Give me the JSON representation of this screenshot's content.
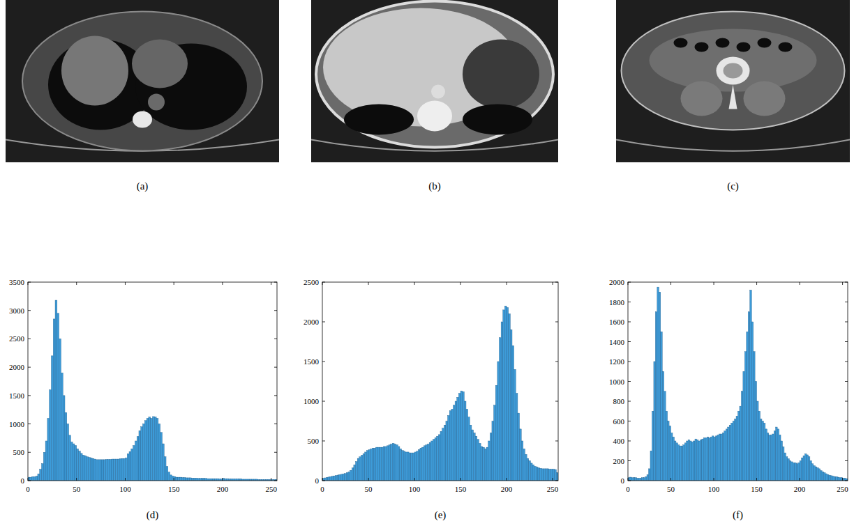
{
  "images": [
    {
      "label": "(a)"
    },
    {
      "label": "(b)"
    },
    {
      "label": "(c)"
    }
  ],
  "chart_data": [
    {
      "type": "histogram",
      "title": "(d)",
      "color": "#3d9bd8",
      "grid": false,
      "xlim": [
        0,
        256
      ],
      "xticks": [
        0,
        50,
        100,
        150,
        200,
        250
      ],
      "ylim": [
        0,
        3500
      ],
      "yticks": [
        0,
        500,
        1000,
        1500,
        2000,
        2500,
        3000,
        3500
      ],
      "bins": [
        0,
        2,
        4,
        6,
        8,
        10,
        12,
        14,
        16,
        18,
        20,
        22,
        24,
        26,
        28,
        30,
        32,
        34,
        36,
        38,
        40,
        42,
        44,
        46,
        48,
        50,
        52,
        54,
        56,
        58,
        60,
        62,
        64,
        66,
        68,
        70,
        72,
        74,
        76,
        78,
        80,
        82,
        84,
        86,
        88,
        90,
        92,
        94,
        96,
        98,
        100,
        102,
        104,
        106,
        108,
        110,
        112,
        114,
        116,
        118,
        120,
        122,
        124,
        126,
        128,
        130,
        132,
        134,
        136,
        138,
        140,
        142,
        144,
        146,
        148,
        150,
        152,
        154,
        156,
        158,
        160,
        162,
        164,
        166,
        168,
        170,
        172,
        174,
        176,
        178,
        180,
        182,
        184,
        186,
        188,
        190,
        192,
        194,
        196,
        198,
        200,
        202,
        204,
        206,
        208,
        210,
        212,
        214,
        216,
        218,
        220,
        222,
        224,
        226,
        228,
        230,
        232,
        234,
        236,
        238,
        240,
        242,
        244,
        246,
        248,
        250,
        252,
        254,
        256
      ],
      "values": [
        60,
        60,
        70,
        70,
        80,
        120,
        200,
        300,
        500,
        700,
        1100,
        1600,
        2200,
        2850,
        3180,
        2950,
        2500,
        1900,
        1500,
        1200,
        1000,
        800,
        680,
        650,
        620,
        560,
        520,
        480,
        450,
        440,
        420,
        410,
        400,
        390,
        380,
        370,
        370,
        370,
        370,
        370,
        375,
        375,
        375,
        380,
        380,
        380,
        380,
        385,
        390,
        390,
        400,
        470,
        510,
        560,
        620,
        700,
        780,
        880,
        950,
        1000,
        1060,
        1100,
        1120,
        1100,
        1130,
        1120,
        1100,
        1000,
        850,
        650,
        420,
        250,
        150,
        100,
        80,
        70,
        60,
        60,
        60,
        55,
        55,
        50,
        50,
        50,
        45,
        45,
        45,
        40,
        40,
        40,
        40,
        40,
        35,
        35,
        35,
        35,
        35,
        35,
        30,
        30,
        40,
        35,
        35,
        30,
        30,
        30,
        30,
        30,
        30,
        30,
        25,
        25,
        25,
        25,
        25,
        25,
        25,
        25,
        20,
        20,
        20,
        20,
        20,
        20,
        20,
        20,
        20,
        20
      ]
    },
    {
      "type": "histogram",
      "title": "(e)",
      "color": "#3d9bd8",
      "grid": false,
      "xlim": [
        0,
        256
      ],
      "xticks": [
        0,
        50,
        100,
        150,
        200,
        250
      ],
      "ylim": [
        0,
        2500
      ],
      "yticks": [
        0,
        500,
        1000,
        1500,
        2000,
        2500
      ],
      "bins": [
        0,
        2,
        4,
        6,
        8,
        10,
        12,
        14,
        16,
        18,
        20,
        22,
        24,
        26,
        28,
        30,
        32,
        34,
        36,
        38,
        40,
        42,
        44,
        46,
        48,
        50,
        52,
        54,
        56,
        58,
        60,
        62,
        64,
        66,
        68,
        70,
        72,
        74,
        76,
        78,
        80,
        82,
        84,
        86,
        88,
        90,
        92,
        94,
        96,
        98,
        100,
        102,
        104,
        106,
        108,
        110,
        112,
        114,
        116,
        118,
        120,
        122,
        124,
        126,
        128,
        130,
        132,
        134,
        136,
        138,
        140,
        142,
        144,
        146,
        148,
        150,
        152,
        154,
        156,
        158,
        160,
        162,
        164,
        166,
        168,
        170,
        172,
        174,
        176,
        178,
        180,
        182,
        184,
        186,
        188,
        190,
        192,
        194,
        196,
        198,
        200,
        202,
        204,
        206,
        208,
        210,
        212,
        214,
        216,
        218,
        220,
        222,
        224,
        226,
        228,
        230,
        232,
        234,
        236,
        238,
        240,
        242,
        244,
        246,
        248,
        250,
        252,
        254,
        256
      ],
      "values": [
        30,
        35,
        40,
        45,
        50,
        55,
        60,
        65,
        70,
        75,
        80,
        85,
        90,
        100,
        110,
        130,
        160,
        200,
        240,
        280,
        300,
        320,
        340,
        360,
        380,
        390,
        400,
        410,
        410,
        420,
        420,
        420,
        420,
        430,
        430,
        440,
        450,
        460,
        470,
        460,
        450,
        430,
        400,
        380,
        370,
        360,
        360,
        350,
        350,
        350,
        360,
        370,
        390,
        410,
        420,
        440,
        450,
        460,
        480,
        500,
        520,
        540,
        560,
        580,
        620,
        660,
        700,
        750,
        820,
        880,
        900,
        950,
        1000,
        1050,
        1100,
        1130,
        1120,
        1000,
        900,
        800,
        700,
        640,
        600,
        560,
        520,
        470,
        430,
        420,
        400,
        420,
        500,
        600,
        750,
        950,
        1200,
        1500,
        1800,
        2000,
        2150,
        2200,
        2180,
        2100,
        1900,
        1700,
        1400,
        1100,
        850,
        650,
        500,
        400,
        330,
        280,
        250,
        220,
        200,
        180,
        170,
        160,
        155,
        150,
        150,
        150,
        150,
        145,
        145,
        145,
        140,
        100
      ]
    },
    {
      "type": "histogram",
      "title": "(f)",
      "color": "#3d9bd8",
      "grid": false,
      "xlim": [
        0,
        256
      ],
      "xticks": [
        0,
        50,
        100,
        150,
        200,
        250
      ],
      "ylim": [
        0,
        2000
      ],
      "yticks": [
        0,
        200,
        400,
        600,
        800,
        1000,
        1200,
        1400,
        1600,
        1800,
        2000
      ],
      "bins": [
        0,
        2,
        4,
        6,
        8,
        10,
        12,
        14,
        16,
        18,
        20,
        22,
        24,
        26,
        28,
        30,
        32,
        34,
        36,
        38,
        40,
        42,
        44,
        46,
        48,
        50,
        52,
        54,
        56,
        58,
        60,
        62,
        64,
        66,
        68,
        70,
        72,
        74,
        76,
        78,
        80,
        82,
        84,
        86,
        88,
        90,
        92,
        94,
        96,
        98,
        100,
        102,
        104,
        106,
        108,
        110,
        112,
        114,
        116,
        118,
        120,
        122,
        124,
        126,
        128,
        130,
        132,
        134,
        136,
        138,
        140,
        142,
        144,
        146,
        148,
        150,
        152,
        154,
        156,
        158,
        160,
        162,
        164,
        166,
        168,
        170,
        172,
        174,
        176,
        178,
        180,
        182,
        184,
        186,
        188,
        190,
        192,
        194,
        196,
        198,
        200,
        202,
        204,
        206,
        208,
        210,
        212,
        214,
        216,
        218,
        220,
        222,
        224,
        226,
        228,
        230,
        232,
        234,
        236,
        238,
        240,
        242,
        244,
        246,
        248,
        250,
        252,
        254,
        256
      ],
      "values": [
        30,
        35,
        30,
        30,
        30,
        25,
        25,
        25,
        30,
        30,
        40,
        60,
        120,
        300,
        700,
        1200,
        1700,
        1950,
        1900,
        1500,
        1100,
        900,
        700,
        600,
        550,
        480,
        440,
        400,
        380,
        360,
        350,
        350,
        360,
        380,
        400,
        410,
        400,
        390,
        400,
        420,
        410,
        400,
        410,
        420,
        430,
        430,
        440,
        430,
        440,
        450,
        440,
        450,
        460,
        470,
        470,
        480,
        500,
        520,
        540,
        560,
        580,
        600,
        620,
        650,
        700,
        750,
        900,
        1100,
        1300,
        1500,
        1700,
        1920,
        1600,
        1300,
        1000,
        800,
        700,
        620,
        600,
        580,
        520,
        480,
        460,
        460,
        470,
        500,
        540,
        520,
        460,
        400,
        340,
        280,
        240,
        220,
        200,
        190,
        180,
        180,
        170,
        180,
        200,
        230,
        250,
        270,
        260,
        240,
        200,
        170,
        150,
        140,
        130,
        120,
        100,
        90,
        80,
        70,
        60,
        55,
        50,
        45,
        40,
        40,
        35,
        30,
        30,
        25,
        25,
        20
      ]
    }
  ]
}
